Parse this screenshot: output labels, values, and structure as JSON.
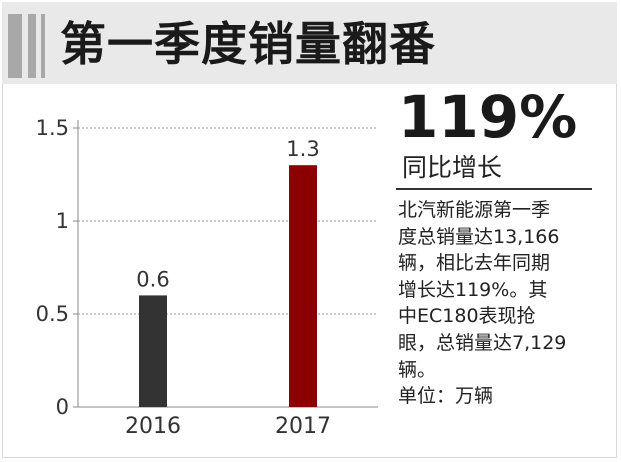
{
  "header": {
    "title": "第一季度销量翻番"
  },
  "highlight": {
    "value": "119%",
    "caption": "同比增长"
  },
  "description_lines": [
    "北汽新能源第一季",
    "度总销量达13,166",
    "辆，相比去年同期",
    "增长达119%。其",
    "中EC180表现抢",
    "眼，总销量达7,129",
    "辆。",
    "单位：万辆"
  ],
  "chart_data": {
    "type": "bar",
    "categories": [
      "2016",
      "2017"
    ],
    "values": [
      0.6,
      1.3
    ],
    "value_labels": [
      "0.6",
      "1.3"
    ],
    "ylim": [
      0,
      1.5
    ],
    "yticks": [
      0,
      0.5,
      1,
      1.5
    ],
    "ytick_labels": [
      "0",
      "0.5",
      "1",
      "1.5"
    ],
    "grid": true,
    "bar_colors": [
      "#333333",
      "#8b0000"
    ]
  }
}
